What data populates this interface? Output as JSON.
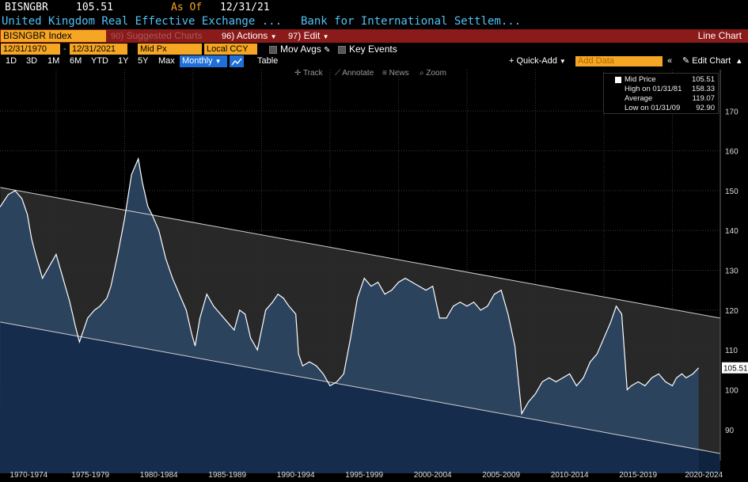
{
  "header": {
    "ticker": "BISNGBR",
    "price": "105.51",
    "as_of_label": "As Of",
    "as_of_date": "12/31/21",
    "description": "United Kingdom Real Effective Exchange ...",
    "source": "Bank for International Settlem..."
  },
  "toolbar": {
    "security": "BISNGBR Index",
    "suggested_num": "90",
    "suggested_label": "Suggested Charts",
    "actions_num": "96",
    "actions_label": "Actions",
    "edit_num": "97",
    "edit_label": "Edit",
    "chart_type": "Line Chart"
  },
  "controls": {
    "start_date": "12/31/1970",
    "end_date": "12/31/2021",
    "field": "Mid Px",
    "currency": "Local CCY",
    "mov_avgs": "Mov Avgs",
    "key_events": "Key Events"
  },
  "periods": [
    "1D",
    "3D",
    "1M",
    "6M",
    "YTD",
    "1Y",
    "5Y",
    "Max"
  ],
  "frequency": "Monthly",
  "table_label": "Table",
  "quick_add": "Quick-Add",
  "add_data_placeholder": "Add Data",
  "edit_chart": "Edit Chart",
  "chart_tools": [
    "Track",
    "Annotate",
    "News",
    "Zoom"
  ],
  "legend": {
    "title": "Mid Price",
    "title_value": "105.51",
    "high_label": "High on 01/31/81",
    "high_value": "158.33",
    "avg_label": "Average",
    "avg_value": "119.07",
    "low_label": "Low on 01/31/09",
    "low_value": "92.90"
  },
  "last_price_tag": "105.51",
  "colors": {
    "accent_orange": "#f5a623",
    "toolbar_red": "#8b1a1a",
    "title_blue": "#4fc3f7",
    "series_line": "#ffffff",
    "series_fill": "#2c4563",
    "channel_fill": "#2a2a2a",
    "selected_blue": "#1e6fd9"
  },
  "chart_data": {
    "type": "line",
    "title": "United Kingdom Real Effective Exchange ...",
    "xlabel": "",
    "ylabel": "",
    "x_tick_labels": [
      "1970-1974",
      "1975-1979",
      "1980-1984",
      "1985-1989",
      "1990-1994",
      "1995-1999",
      "2000-2004",
      "2005-2009",
      "2010-2014",
      "2015-2019",
      "2020-2024"
    ],
    "y_ticks": [
      90,
      100,
      110,
      120,
      130,
      140,
      150,
      160,
      170
    ],
    "ylim": [
      83,
      178
    ],
    "xlim": [
      1970.9,
      2023.5
    ],
    "grid": true,
    "legend_position": "top-right",
    "series": [
      {
        "name": "Mid Price",
        "x": [
          1970.92,
          1971.5,
          1972.0,
          1972.5,
          1972.9,
          1973.2,
          1973.5,
          1974.0,
          1974.5,
          1975.0,
          1975.5,
          1976.0,
          1976.4,
          1976.7,
          1976.9,
          1977.3,
          1977.8,
          1978.2,
          1978.7,
          1979.0,
          1979.5,
          1980.0,
          1980.5,
          1981.0,
          1981.3,
          1981.7,
          1982.0,
          1982.5,
          1983.0,
          1983.5,
          1984.0,
          1984.5,
          1984.9,
          1985.15,
          1985.5,
          1986.0,
          1986.5,
          1987.0,
          1987.5,
          1988.0,
          1988.4,
          1988.8,
          1989.2,
          1989.7,
          1990.0,
          1990.3,
          1990.8,
          1991.2,
          1991.6,
          1992.0,
          1992.5,
          1992.7,
          1993.0,
          1993.5,
          1994.0,
          1994.5,
          1995.0,
          1995.5,
          1996.0,
          1996.5,
          1997.0,
          1997.5,
          1998.0,
          1998.5,
          1999.0,
          1999.5,
          2000.0,
          2000.5,
          2001.0,
          2001.5,
          2002.0,
          2002.5,
          2003.0,
          2003.5,
          2004.0,
          2004.5,
          2005.0,
          2005.5,
          2006.0,
          2006.5,
          2007.0,
          2007.5,
          2008.0,
          2008.5,
          2009.0,
          2009.5,
          2010.0,
          2010.5,
          2011.0,
          2011.5,
          2012.0,
          2012.5,
          2013.0,
          2013.5,
          2014.0,
          2014.5,
          2015.0,
          2015.5,
          2015.9,
          2016.3,
          2016.7,
          2017.0,
          2017.5,
          2018.0,
          2018.5,
          2019.0,
          2019.5,
          2020.0,
          2020.3,
          2020.7,
          2021.0,
          2021.5,
          2021.92
        ],
        "values": [
          146,
          149,
          150,
          148,
          144,
          138,
          134,
          128,
          131,
          134,
          128,
          122,
          116,
          112,
          114,
          118,
          120,
          121,
          123,
          126,
          134,
          143,
          154,
          158,
          152,
          146,
          144,
          140,
          133,
          128,
          124,
          120,
          114,
          111,
          118,
          124,
          121,
          119,
          117,
          115,
          120,
          119,
          113,
          110,
          115,
          120,
          122,
          124,
          123,
          121,
          119,
          109,
          106,
          107,
          106,
          104,
          101,
          102,
          104,
          113,
          123,
          128,
          126,
          127,
          124,
          125,
          127,
          128,
          127,
          126,
          125,
          126,
          118,
          118,
          121,
          122,
          121,
          122,
          120,
          121,
          124,
          125,
          119,
          111,
          94,
          97,
          99,
          102,
          103,
          102,
          103,
          104,
          101,
          103,
          107,
          109,
          113,
          117,
          121,
          119,
          100,
          101,
          102,
          101,
          103,
          104,
          102,
          101,
          103,
          104,
          103,
          104,
          105.51
        ]
      }
    ],
    "channel": {
      "upper": [
        [
          1970.92,
          150.8
        ],
        [
          2023.5,
          118.0
        ]
      ],
      "lower": [
        [
          1970.92,
          117.0
        ],
        [
          2023.5,
          84.0
        ]
      ]
    }
  }
}
